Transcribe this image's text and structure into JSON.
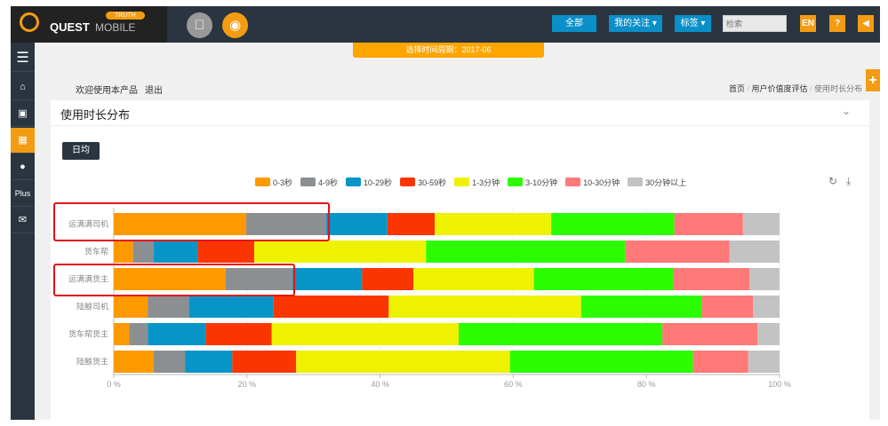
{
  "header": {
    "brand": "QUEST",
    "brand_sub": "MOBILE",
    "badge": "TRUTH",
    "all_btn": "全部",
    "follow_btn": "我的关注",
    "tags_btn": "标签",
    "search_placeholder": "检索",
    "lang_btn": "EN",
    "help_btn": "?",
    "sound_icon": "speaker-icon"
  },
  "sidebar": {
    "items": [
      {
        "icon": "menu-icon"
      },
      {
        "icon": "home-icon"
      },
      {
        "icon": "briefcase-icon"
      },
      {
        "icon": "grid-icon"
      },
      {
        "icon": "user-icon"
      },
      {
        "label": "Plus"
      },
      {
        "icon": "mail-icon"
      }
    ]
  },
  "period_bar": "选择时间周期：2017-06",
  "welcome": "欢迎使用本产品",
  "logout": "退出",
  "breadcrumb": [
    "首页",
    "用户价值度评估",
    "使用时长分布"
  ],
  "panel": {
    "title": "使用时长分布",
    "daily_btn": "日均"
  },
  "chart_data": {
    "type": "bar",
    "orientation": "horizontal",
    "stacked": true,
    "percent": true,
    "categories": [
      "运满满司机",
      "货车帮",
      "运满满货主",
      "陆鲸司机",
      "货车帮货主",
      "陆鲸货主"
    ],
    "series": [
      {
        "name": "0-3秒",
        "color": "#ff9900",
        "values": [
          19.9,
          2.9,
          16.8,
          5.1,
          2.3,
          6.0
        ]
      },
      {
        "name": "4-9秒",
        "color": "#8c8f92",
        "values": [
          12.0,
          3.1,
          10.1,
          6.2,
          2.8,
          4.7
        ]
      },
      {
        "name": "10-29秒",
        "color": "#0795c8",
        "values": [
          9.2,
          6.6,
          10.4,
          12.7,
          8.7,
          7.1
        ]
      },
      {
        "name": "30-59秒",
        "color": "#fb3500",
        "values": [
          7.1,
          8.5,
          7.7,
          17.3,
          9.9,
          9.6
        ]
      },
      {
        "name": "1-3分钟",
        "color": "#eef200",
        "values": [
          17.5,
          25.8,
          18.1,
          28.9,
          28.1,
          32.1
        ]
      },
      {
        "name": "3-10分钟",
        "color": "#2bfc00",
        "values": [
          18.5,
          29.9,
          20.9,
          18.1,
          30.6,
          27.5
        ]
      },
      {
        "name": "10-30分钟",
        "color": "#ff7979",
        "values": [
          10.3,
          15.7,
          11.5,
          7.7,
          14.3,
          8.3
        ]
      },
      {
        "name": "30分钟以上",
        "color": "#c3c3c3",
        "values": [
          5.5,
          7.5,
          4.5,
          4.0,
          3.3,
          4.7
        ]
      }
    ],
    "xticks": [
      "0 %",
      "20 %",
      "40 %",
      "60 %",
      "80 %",
      "100 %"
    ],
    "xlim": [
      0,
      100
    ],
    "legend": "top",
    "highlighted": [
      "运满满司机",
      "运满满货主"
    ]
  }
}
